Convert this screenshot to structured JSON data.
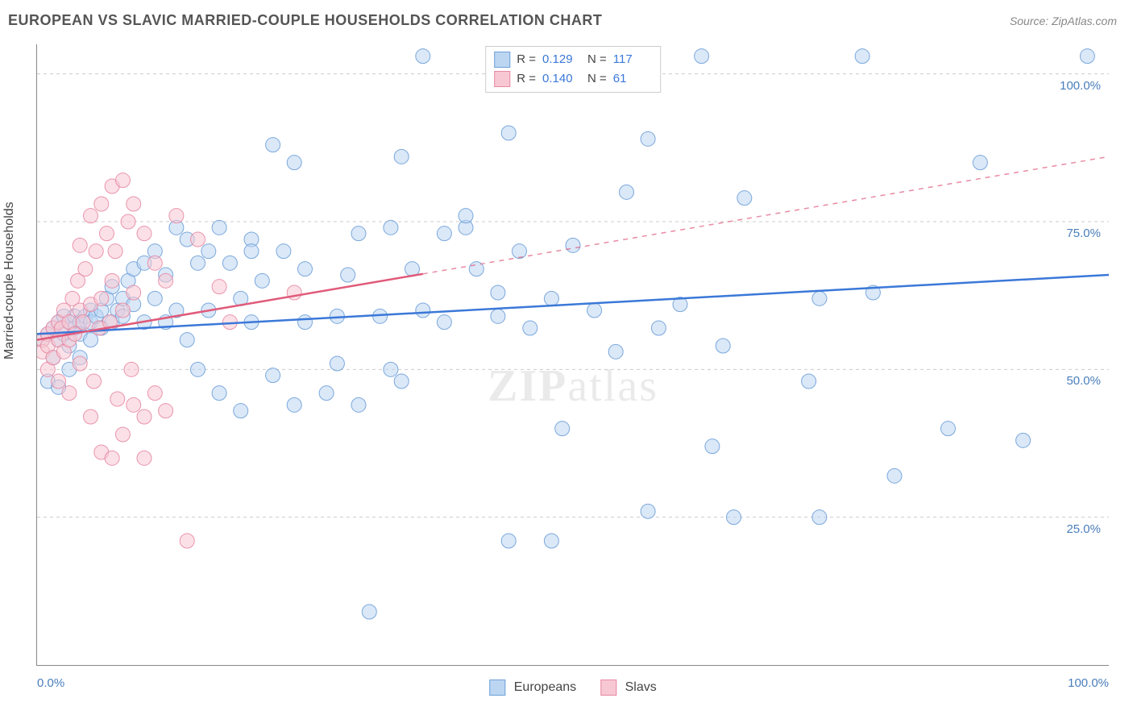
{
  "title": "EUROPEAN VS SLAVIC MARRIED-COUPLE HOUSEHOLDS CORRELATION CHART",
  "source_label": "Source: ZipAtlas.com",
  "y_axis_title": "Married-couple Households",
  "watermark": "ZIPatlas",
  "chart": {
    "type": "scatter",
    "xlim": [
      0,
      100
    ],
    "ylim": [
      0,
      105
    ],
    "x_ticks": [
      0,
      10,
      20,
      30,
      40,
      50,
      60,
      70,
      80,
      90,
      100
    ],
    "y_gridlines": [
      25,
      50,
      75,
      100
    ],
    "y_tick_labels": {
      "25": "25.0%",
      "50": "50.0%",
      "75": "75.0%",
      "100": "100.0%"
    },
    "x_min_label": "0.0%",
    "x_max_label": "100.0%",
    "background_color": "#ffffff",
    "grid_color": "#cccccc",
    "marker_radius": 9,
    "marker_opacity": 0.55,
    "marker_stroke_opacity": 0.9,
    "line_width": 2.5,
    "series": [
      {
        "name": "Europeans",
        "color_fill": "#bcd6f2",
        "color_stroke": "#6fa0d8",
        "line_color": "#3b78d8",
        "r_value": "0.129",
        "n_value": "117",
        "fit_start": [
          0,
          56
        ],
        "fit_end": [
          100,
          66
        ],
        "dash_from": null,
        "points": [
          [
            0.5,
            55
          ],
          [
            1,
            56
          ],
          [
            1,
            48
          ],
          [
            1.5,
            57
          ],
          [
            1.5,
            52
          ],
          [
            2,
            58
          ],
          [
            2,
            55
          ],
          [
            2,
            47
          ],
          [
            2.5,
            59
          ],
          [
            2.5,
            56
          ],
          [
            3,
            58
          ],
          [
            3,
            54
          ],
          [
            3,
            50
          ],
          [
            3.5,
            59
          ],
          [
            3.5,
            57
          ],
          [
            4,
            58
          ],
          [
            4,
            56
          ],
          [
            4,
            52
          ],
          [
            4.5,
            59
          ],
          [
            5,
            60
          ],
          [
            5,
            58
          ],
          [
            5,
            55
          ],
          [
            5.5,
            59
          ],
          [
            6,
            60
          ],
          [
            6,
            57
          ],
          [
            6.5,
            62
          ],
          [
            7,
            64
          ],
          [
            7,
            58
          ],
          [
            7.5,
            60
          ],
          [
            8,
            62
          ],
          [
            8,
            59
          ],
          [
            8.5,
            65
          ],
          [
            9,
            67
          ],
          [
            9,
            61
          ],
          [
            10,
            68
          ],
          [
            10,
            58
          ],
          [
            11,
            70
          ],
          [
            11,
            62
          ],
          [
            12,
            66
          ],
          [
            12,
            58
          ],
          [
            13,
            74
          ],
          [
            13,
            60
          ],
          [
            14,
            72
          ],
          [
            14,
            55
          ],
          [
            15,
            68
          ],
          [
            15,
            50
          ],
          [
            16,
            70
          ],
          [
            16,
            60
          ],
          [
            17,
            74
          ],
          [
            17,
            46
          ],
          [
            18,
            68
          ],
          [
            19,
            62
          ],
          [
            19,
            43
          ],
          [
            20,
            72
          ],
          [
            20,
            58
          ],
          [
            20,
            70
          ],
          [
            21,
            65
          ],
          [
            22,
            88
          ],
          [
            22,
            49
          ],
          [
            23,
            70
          ],
          [
            24,
            85
          ],
          [
            24,
            44
          ],
          [
            25,
            67
          ],
          [
            25,
            58
          ],
          [
            27,
            46
          ],
          [
            28,
            59
          ],
          [
            28,
            51
          ],
          [
            29,
            66
          ],
          [
            30,
            73
          ],
          [
            30,
            44
          ],
          [
            31,
            9
          ],
          [
            32,
            59
          ],
          [
            33,
            74
          ],
          [
            33,
            50
          ],
          [
            34,
            86
          ],
          [
            34,
            48
          ],
          [
            35,
            67
          ],
          [
            36,
            60
          ],
          [
            36,
            103
          ],
          [
            38,
            73
          ],
          [
            38,
            58
          ],
          [
            40,
            74
          ],
          [
            40,
            76
          ],
          [
            41,
            67
          ],
          [
            43,
            63
          ],
          [
            43,
            59
          ],
          [
            44,
            90
          ],
          [
            44,
            21
          ],
          [
            45,
            70
          ],
          [
            46,
            57
          ],
          [
            48,
            62
          ],
          [
            48,
            21
          ],
          [
            49,
            40
          ],
          [
            50,
            71
          ],
          [
            52,
            60
          ],
          [
            54,
            53
          ],
          [
            55,
            80
          ],
          [
            57,
            26
          ],
          [
            57,
            89
          ],
          [
            58,
            57
          ],
          [
            60,
            61
          ],
          [
            62,
            103
          ],
          [
            63,
            37
          ],
          [
            64,
            54
          ],
          [
            65,
            25
          ],
          [
            66,
            79
          ],
          [
            72,
            48
          ],
          [
            73,
            25
          ],
          [
            73,
            62
          ],
          [
            77,
            103
          ],
          [
            78,
            63
          ],
          [
            80,
            32
          ],
          [
            85,
            40
          ],
          [
            88,
            85
          ],
          [
            92,
            38
          ],
          [
            98,
            103
          ]
        ]
      },
      {
        "name": "Slavs",
        "color_fill": "#f7c8d4",
        "color_stroke": "#e889a3",
        "line_color": "#e05a7a",
        "r_value": "0.140",
        "n_value": "61",
        "fit_start": [
          0,
          55
        ],
        "fit_end": [
          100,
          86
        ],
        "dash_from": 36,
        "points": [
          [
            0.5,
            55
          ],
          [
            0.5,
            53
          ],
          [
            1,
            56
          ],
          [
            1,
            54
          ],
          [
            1,
            50
          ],
          [
            1.5,
            57
          ],
          [
            1.5,
            52
          ],
          [
            2,
            58
          ],
          [
            2,
            55
          ],
          [
            2,
            48
          ],
          [
            2.3,
            57
          ],
          [
            2.5,
            60
          ],
          [
            2.5,
            53
          ],
          [
            3,
            58
          ],
          [
            3,
            55
          ],
          [
            3,
            46
          ],
          [
            3.3,
            62
          ],
          [
            3.5,
            56
          ],
          [
            3.8,
            65
          ],
          [
            4,
            60
          ],
          [
            4,
            51
          ],
          [
            4,
            71
          ],
          [
            4.3,
            58
          ],
          [
            4.5,
            67
          ],
          [
            5,
            76
          ],
          [
            5,
            61
          ],
          [
            5,
            42
          ],
          [
            5.3,
            48
          ],
          [
            5.5,
            70
          ],
          [
            5.8,
            57
          ],
          [
            6,
            78
          ],
          [
            6,
            62
          ],
          [
            6,
            36
          ],
          [
            6.5,
            73
          ],
          [
            6.8,
            58
          ],
          [
            7,
            81
          ],
          [
            7,
            65
          ],
          [
            7,
            35
          ],
          [
            7.3,
            70
          ],
          [
            7.5,
            45
          ],
          [
            8,
            82
          ],
          [
            8,
            60
          ],
          [
            8,
            39
          ],
          [
            8.5,
            75
          ],
          [
            8.8,
            50
          ],
          [
            9,
            78
          ],
          [
            9,
            63
          ],
          [
            9,
            44
          ],
          [
            10,
            73
          ],
          [
            10,
            42
          ],
          [
            10,
            35
          ],
          [
            11,
            68
          ],
          [
            11,
            46
          ],
          [
            12,
            65
          ],
          [
            12,
            43
          ],
          [
            13,
            76
          ],
          [
            14,
            21
          ],
          [
            15,
            72
          ],
          [
            17,
            64
          ],
          [
            18,
            58
          ],
          [
            24,
            63
          ]
        ]
      }
    ]
  },
  "legend_top": {
    "r_label": "R =",
    "n_label": "N ="
  },
  "legend_bottom": {
    "items": [
      "Europeans",
      "Slavs"
    ]
  }
}
